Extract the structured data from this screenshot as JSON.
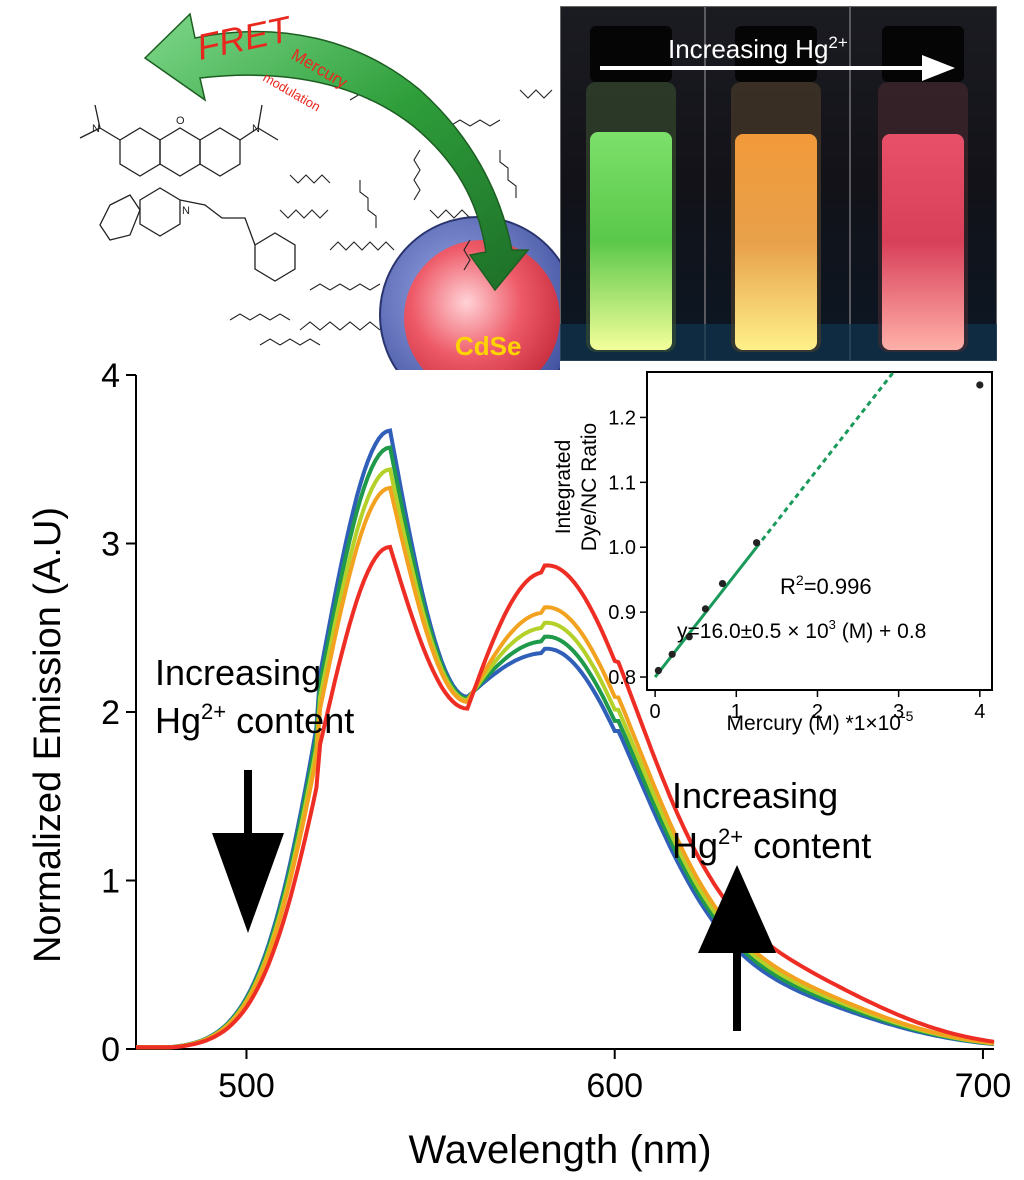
{
  "scheme": {
    "fret_label": "FRET",
    "mercury_label": "Mercury",
    "modulation_label": "modulation",
    "cdse_label": "CdSe",
    "fret_color": "#e8281e",
    "cdse_color": "#ffd400",
    "arrow_color": "#2e9e3a",
    "core_color": "#e84a5a",
    "shell_color": "#4a5eb0"
  },
  "photo": {
    "caption_prefix": "Increasing Hg",
    "caption_sup": "2+",
    "vial_colors": [
      "#9be06a",
      "#f7c15a",
      "#ff6a7a"
    ]
  },
  "main_chart": {
    "yaxis_label": "Normalized Emission (A.U)",
    "xaxis_label": "Wavelength (nm)",
    "left_annotation_line1": "Increasing",
    "left_annotation_line2_prefix": "Hg",
    "left_annotation_sup": "2+",
    "left_annotation_line2_suffix": " content",
    "right_annotation_line1": "Increasing",
    "right_annotation_line2_prefix": "Hg",
    "right_annotation_sup": "2+",
    "right_annotation_line2_suffix": " content"
  },
  "inset_chart": {
    "r2_prefix": "R",
    "r2_sup": "2",
    "r2_suffix": "=0.996",
    "equation_prefix": "y=16.0±0.5 × 10",
    "equation_sup": "3",
    "equation_suffix": " (M) + 0.8",
    "yaxis_label_line1": "Integrated",
    "yaxis_label_line2": "Dye/NC Ratio",
    "xaxis_label_prefix": "Mercury (M) *1×10",
    "xaxis_label_sup": "-5"
  },
  "chart_data": [
    {
      "type": "line",
      "xlabel": "Wavelength (nm)",
      "ylabel": "Normalized Emission (A.U)",
      "xlim": [
        470,
        703
      ],
      "ylim": [
        0,
        4
      ],
      "xticks": [
        500,
        600,
        700
      ],
      "yticks": [
        0,
        1,
        2,
        3,
        4
      ],
      "grid": false,
      "series": [
        {
          "color": "#2f5fb8",
          "peak1": 3.67,
          "trough": 2.09,
          "peak2": 2.35,
          "shoulder": 0.27
        },
        {
          "color": "#1f9a4a",
          "peak1": 3.57,
          "trough": 2.08,
          "peak2": 2.42,
          "shoulder": 0.29
        },
        {
          "color": "#b4d12a",
          "peak1": 3.44,
          "trough": 2.07,
          "peak2": 2.5,
          "shoulder": 0.31
        },
        {
          "color": "#f3a21f",
          "peak1": 3.33,
          "trough": 2.06,
          "peak2": 2.59,
          "shoulder": 0.33
        },
        {
          "color": "#ee2e24",
          "peak1": 2.98,
          "trough": 2.02,
          "peak2": 2.83,
          "shoulder": 0.42
        }
      ]
    },
    {
      "type": "scatter",
      "xlabel": "Mercury (M) *1×10-5",
      "ylabel": "Integrated Dye/NC Ratio",
      "xlim": [
        -0.1,
        4.15
      ],
      "ylim": [
        0.78,
        1.27
      ],
      "xticks": [
        0,
        1,
        2,
        3,
        4
      ],
      "yticks": [
        0.8,
        0.9,
        1.0,
        1.1,
        1.2
      ],
      "points": [
        {
          "x": 0.04,
          "y": 0.81
        },
        {
          "x": 0.21,
          "y": 0.835
        },
        {
          "x": 0.42,
          "y": 0.862
        },
        {
          "x": 0.62,
          "y": 0.905
        },
        {
          "x": 0.83,
          "y": 0.944
        },
        {
          "x": 1.25,
          "y": 1.007
        },
        {
          "x": 4.0,
          "y": 1.25
        }
      ],
      "fit": {
        "slope": 0.16,
        "intercept": 0.8,
        "solid_to_x": 1.25
      },
      "fit_color": "#1a9a5a"
    }
  ]
}
